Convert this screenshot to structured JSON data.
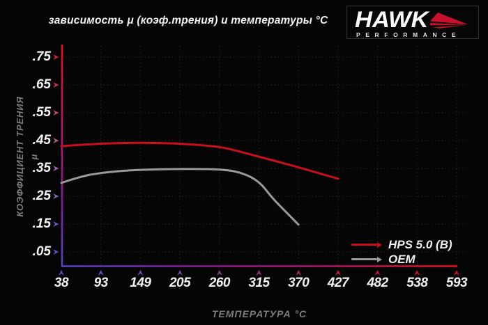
{
  "title": "зависимость μ (коэф.трения) и температуры °C",
  "logo": {
    "brand": "HAWK",
    "subtitle": "PERFORMANCE"
  },
  "legend": {
    "items": [
      {
        "label": "HPS 5.0 (B)",
        "color": "#c8101a"
      },
      {
        "label": "OEM",
        "color": "#9a9a9a"
      }
    ]
  },
  "colors": {
    "background": "#050505",
    "title_text": "#f2f2f2",
    "tick_text": "#f2f2f2",
    "axis_title_text": "#7d7d7d",
    "grid": "#2d2d2d",
    "hps_line": "#c8101a",
    "oem_line": "#9a9a9a",
    "logo_red": "#c8102e",
    "axis_gradient": [
      "#e81016",
      "#b31670",
      "#8a1a9a",
      "#5444cc"
    ],
    "y_arrow_colors": [
      "#e0202a",
      "#d03050",
      "#c04878",
      "#b05894",
      "#9c68ae",
      "#8060b8",
      "#6858c8",
      "#5850d0"
    ],
    "x_arrow_colors": [
      "#5850d0",
      "#6455c8",
      "#7050b8",
      "#7c48aa",
      "#8c3e9a",
      "#9c3484",
      "#b02868",
      "#c41e48",
      "#cc1834",
      "#d21424",
      "#d61218"
    ]
  },
  "chart_data": {
    "type": "line",
    "title": "зависимость μ (коэф.трения) и температуры °C",
    "xlabel": "ТЕМПЕРАТУРА °C",
    "ylabel": "КОЭФФИЦИЕНТ ТРЕНИЯ μ",
    "x_ticks": [
      38,
      93,
      149,
      205,
      260,
      315,
      370,
      427,
      482,
      538,
      593
    ],
    "y_ticks": [
      0.75,
      0.65,
      0.55,
      0.45,
      0.35,
      0.25,
      0.15,
      0.05
    ],
    "y_tick_labels": [
      ".75",
      ".65",
      ".55",
      ".45",
      ".35",
      ".25",
      ".15",
      ".05"
    ],
    "xlim": [
      38,
      593
    ],
    "ylim": [
      0,
      0.8
    ],
    "grid": "dotted",
    "legend_position": "lower-right",
    "series": [
      {
        "name": "HPS 5.0 (B)",
        "color": "#c8101a",
        "points": [
          [
            38,
            0.43
          ],
          [
            66,
            0.435
          ],
          [
            93,
            0.439
          ],
          [
            121,
            0.441
          ],
          [
            149,
            0.442
          ],
          [
            177,
            0.441
          ],
          [
            205,
            0.439
          ],
          [
            232,
            0.434
          ],
          [
            260,
            0.428
          ],
          [
            288,
            0.411
          ],
          [
            315,
            0.392
          ],
          [
            343,
            0.373
          ],
          [
            370,
            0.354
          ],
          [
            399,
            0.333
          ],
          [
            427,
            0.313
          ]
        ]
      },
      {
        "name": "OEM",
        "color": "#9a9a9a",
        "points": [
          [
            38,
            0.298
          ],
          [
            66,
            0.322
          ],
          [
            93,
            0.334
          ],
          [
            121,
            0.341
          ],
          [
            149,
            0.345
          ],
          [
            177,
            0.347
          ],
          [
            205,
            0.348
          ],
          [
            232,
            0.348
          ],
          [
            260,
            0.347
          ],
          [
            288,
            0.338
          ],
          [
            315,
            0.305
          ],
          [
            333,
            0.245
          ],
          [
            352,
            0.195
          ],
          [
            370,
            0.148
          ]
        ]
      }
    ]
  }
}
